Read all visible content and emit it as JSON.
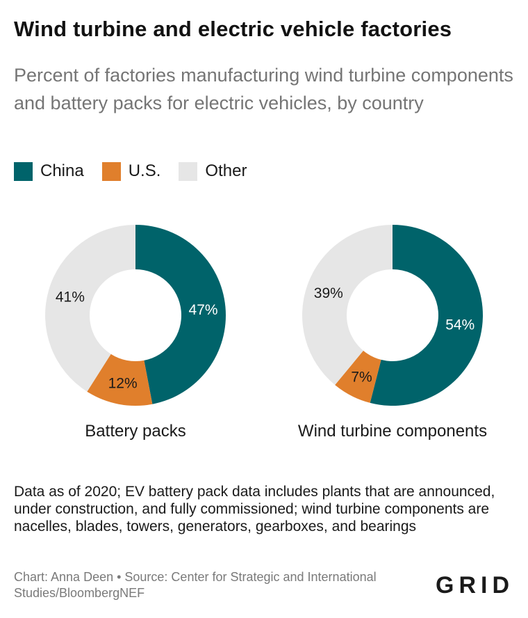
{
  "title": "Wind turbine and electric vehicle factories",
  "subtitle": "Percent of factories manufacturing wind turbine components and battery packs for electric vehicles, by country",
  "colors": {
    "China": "#00636a",
    "U.S.": "#e07f2c",
    "Other": "#e6e6e6"
  },
  "legend": [
    {
      "label": "China",
      "color": "#00636a"
    },
    {
      "label": "U.S.",
      "color": "#e07f2c"
    },
    {
      "label": "Other",
      "color": "#e6e6e6"
    }
  ],
  "chart_data": [
    {
      "type": "pie",
      "title": "Battery packs",
      "categories": [
        "China",
        "U.S.",
        "Other"
      ],
      "values": [
        47,
        12,
        41
      ],
      "labels": [
        "47%",
        "12%",
        "41%"
      ],
      "legend": "top-left"
    },
    {
      "type": "pie",
      "title": "Wind turbine components",
      "categories": [
        "China",
        "U.S.",
        "Other"
      ],
      "values": [
        54,
        7,
        39
      ],
      "labels": [
        "54%",
        "7%",
        "39%"
      ],
      "legend": "top-left"
    }
  ],
  "note": "Data as of 2020; EV battery pack data includes plants that are announced, under construction, and fully commissioned; wind turbine components are nacelles, blades, towers, generators, gearboxes, and bearings",
  "credit": "Chart: Anna Deen • Source: Center for Strategic and International Studies/BloombergNEF",
  "logo": "GRID"
}
